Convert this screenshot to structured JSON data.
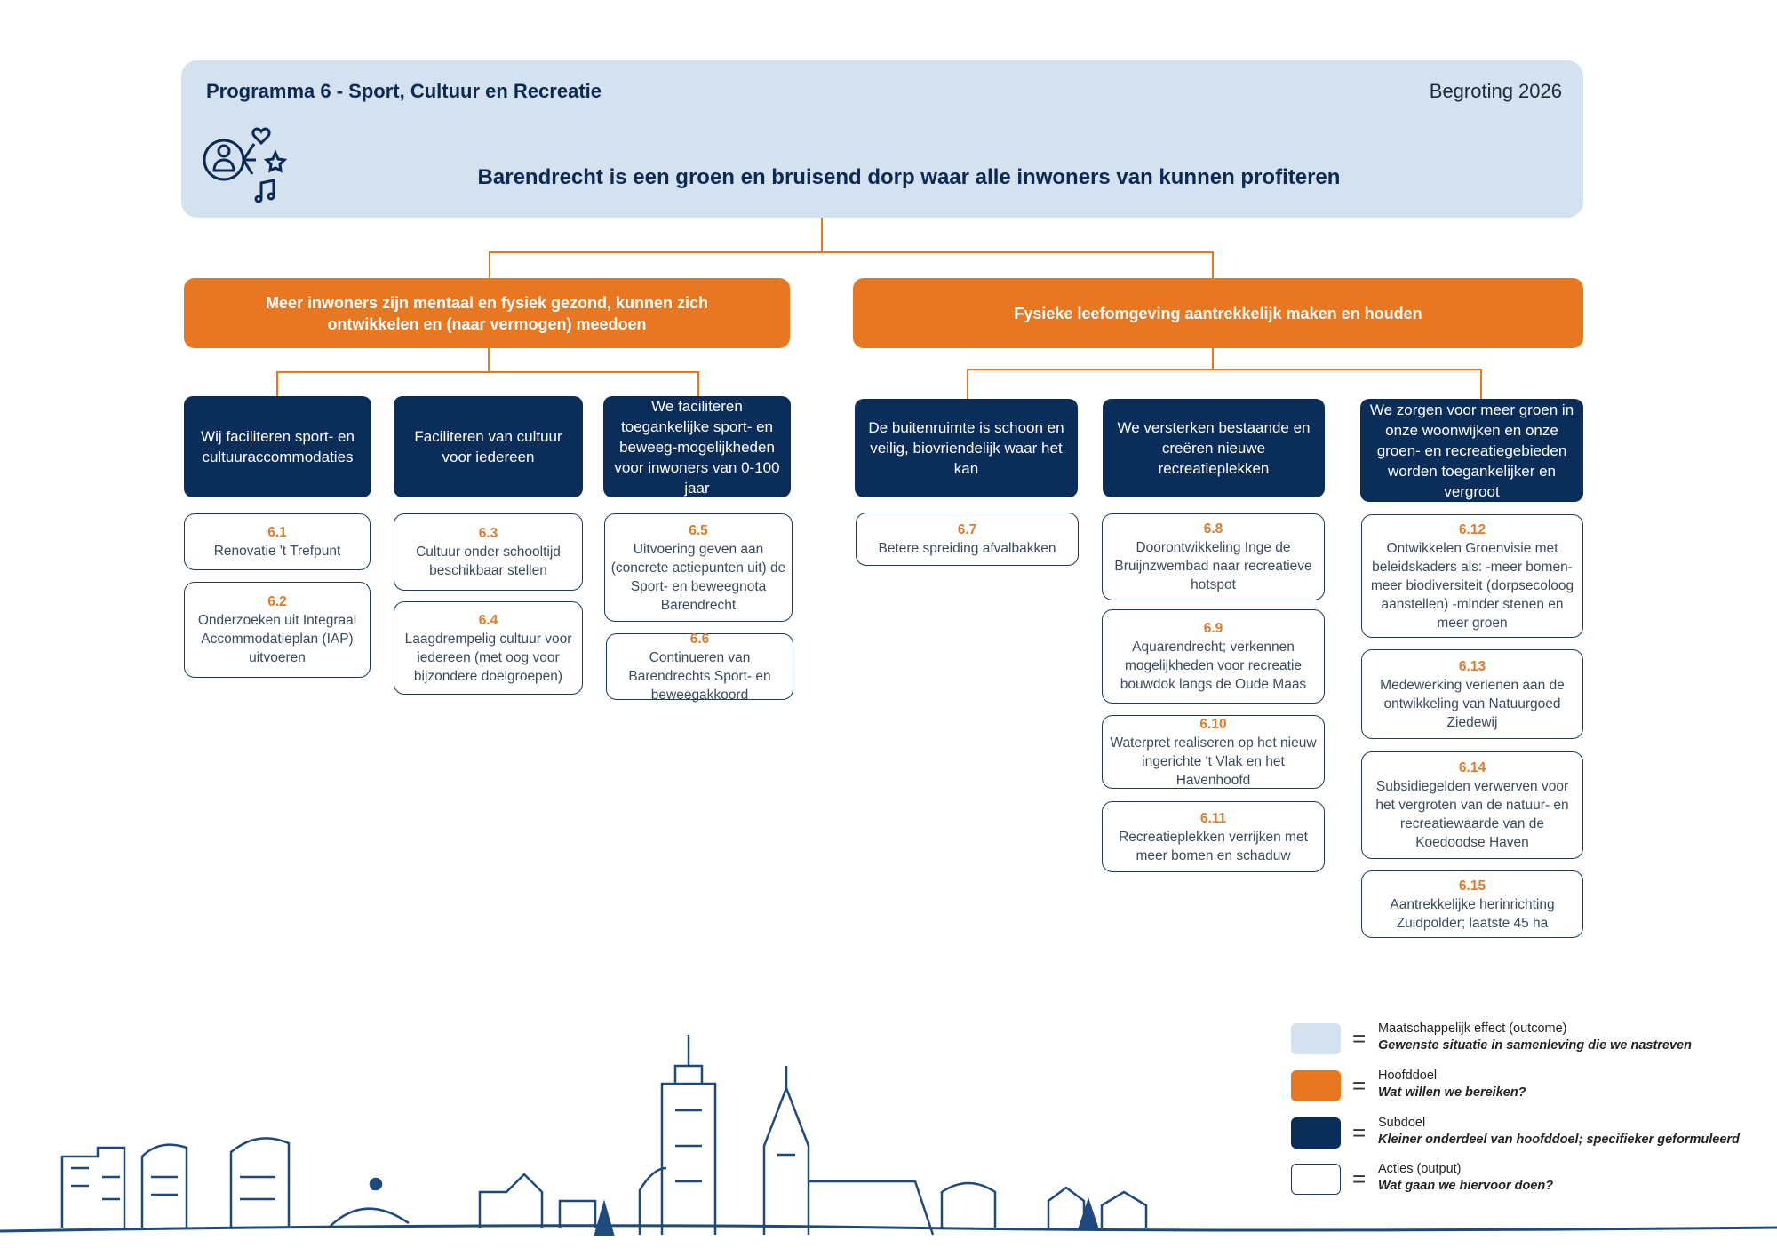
{
  "header": {
    "title": "Programma 6 - Sport, Cultuur en Recreatie",
    "year": "Begroting 2026",
    "effect": "Barendrecht is een groen en bruisend dorp waar alle inwoners van kunnen profiteren",
    "icon": "person-heart-star-music-icon"
  },
  "hoofddoelen": [
    "Meer inwoners zijn mentaal en fysiek gezond, kunnen zich ontwikkelen en (naar vermogen) meedoen",
    "Fysieke leefomgeving aantrekkelijk maken en houden"
  ],
  "subdoelen": [
    "Wij faciliteren sport- en cultuuraccommodaties",
    "Faciliteren van cultuur voor iedereen",
    "We faciliteren toegankelijke sport- en beweeg-mogelijkheden voor inwoners van 0-100 jaar",
    "De buitenruimte is schoon en veilig, biovriendelijk waar het kan",
    "We versterken bestaande en creëren nieuwe recreatieplekken",
    "We zorgen voor meer groen in onze woonwijken en onze groen- en recreatiegebieden worden toegankelijker en vergroot"
  ],
  "acties": [
    {
      "num": "6.1",
      "text": "Renovatie 't Trefpunt"
    },
    {
      "num": "6.2",
      "text": "Onderzoeken uit Integraal Accommodatieplan (IAP) uitvoeren"
    },
    {
      "num": "6.3",
      "text": "Cultuur onder schooltijd beschikbaar stellen"
    },
    {
      "num": "6.4",
      "text": "Laagdrempelig cultuur voor iedereen (met oog voor bijzondere doelgroepen)"
    },
    {
      "num": "6.5",
      "text": "Uitvoering geven aan (concrete actiepunten uit) de Sport- en beweegnota Barendrecht"
    },
    {
      "num": "6.6",
      "text": "Continueren van Barendrechts Sport- en beweegakkoord"
    },
    {
      "num": "6.7",
      "text": "Betere spreiding afvalbakken"
    },
    {
      "num": "6.8",
      "text": "Doorontwikkeling Inge de Bruijnzwembad naar recreatieve hotspot"
    },
    {
      "num": "6.9",
      "text": "Aquarendrecht; verkennen mogelijkheden voor recreatie bouwdok langs de Oude Maas"
    },
    {
      "num": "6.10",
      "text": "Waterpret realiseren op het nieuw ingerichte 't Vlak en het Havenhoofd"
    },
    {
      "num": "6.11",
      "text": "Recreatieplekken verrijken met meer bomen en schaduw"
    },
    {
      "num": "6.12",
      "text": "Ontwikkelen Groenvisie met beleidskaders als: -meer bomen- meer biodiversiteit (dorpsecoloog aanstellen) -minder stenen en meer groen"
    },
    {
      "num": "6.13",
      "text": "Medewerking verlenen aan de ontwikkeling van Natuurgoed Ziedewij"
    },
    {
      "num": "6.14",
      "text": "Subsidiegelden verwerven voor het vergroten van de natuur- en recreatiewaarde van de Koedoodse Haven"
    },
    {
      "num": "6.15",
      "text": "Aantrekkelijke herinrichting Zuidpolder; laatste 45 ha"
    }
  ],
  "legend": [
    {
      "label": "Maatschappelijk effect (outcome)",
      "desc": "Gewenste situatie in samenleving die we nastreven",
      "color": "#d4e1ee"
    },
    {
      "label": "Hoofddoel",
      "desc": "Wat willen we bereiken?",
      "color": "#e87722"
    },
    {
      "label": "Subdoel",
      "desc": "Kleiner onderdeel van hoofddoel; specifieker geformuleerd",
      "color": "#0a2d5a"
    },
    {
      "label": "Acties (output)",
      "desc": "Wat gaan we hiervoor doen?",
      "color": "#ffffff"
    }
  ],
  "legend_eq": "=",
  "colors": {
    "outcome": "#d4e1ee",
    "hoofddoel": "#e87722",
    "subdoel": "#0a2d5a",
    "actie_nummer": "#e07b2a"
  }
}
